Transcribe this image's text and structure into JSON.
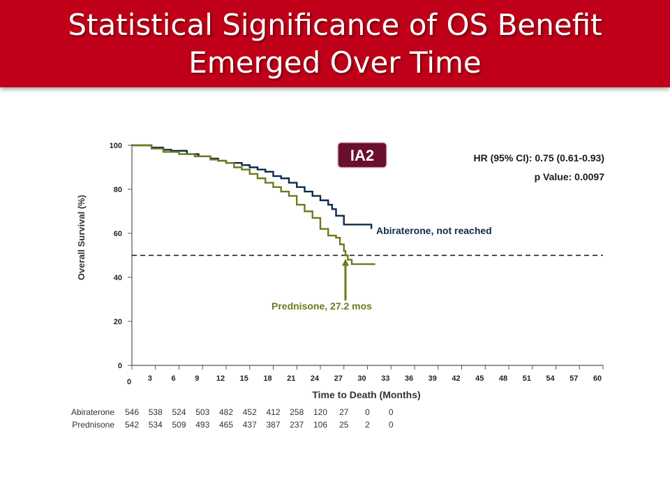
{
  "header": {
    "title_line1": "Statistical Significance of OS Benefit",
    "title_line2": "Emerged Over Time",
    "bg_color": "#c00018"
  },
  "chart_data": {
    "type": "line",
    "title": "",
    "xlabel": "Time to Death (Months)",
    "ylabel": "Overall Survival (%)",
    "xlim": [
      0,
      60
    ],
    "ylim": [
      0,
      100
    ],
    "x_ticks": [
      0,
      3,
      6,
      9,
      12,
      15,
      18,
      21,
      24,
      27,
      30,
      33,
      36,
      39,
      42,
      45,
      48,
      51,
      54,
      57,
      60
    ],
    "y_ticks": [
      0,
      20,
      40,
      60,
      80,
      100
    ],
    "grid": false,
    "badge": {
      "text": "IA2",
      "color": "#6b0f2e"
    },
    "stats": {
      "hr": "HR (95% CI): 0.75 (0.61-0.93)",
      "p": "p Value: 0.0097"
    },
    "median_line_y": 50,
    "series": [
      {
        "name": "Abiraterone",
        "label": "Abiraterone, not reached",
        "color": "#0d2a4a",
        "x": [
          0,
          0.5,
          2.5,
          4,
          5,
          7,
          8.5,
          10,
          11,
          12,
          14,
          15,
          16,
          17,
          18,
          19,
          20,
          21,
          22,
          23,
          24,
          25,
          25.5,
          26,
          27,
          30.5
        ],
        "y": [
          100,
          100,
          99,
          98,
          97.5,
          96,
          95,
          94,
          93,
          92,
          91,
          90,
          89,
          88,
          86,
          85,
          83,
          81,
          79,
          77,
          75,
          73,
          71,
          68,
          64,
          62
        ]
      },
      {
        "name": "Prednisone",
        "label": "Prednisone, 27.2 mos",
        "color": "#6b7a1e",
        "x": [
          0,
          0.5,
          2.5,
          4,
          6,
          8,
          10,
          11,
          12,
          13,
          14,
          15,
          16,
          17,
          18,
          19,
          20,
          21,
          22,
          23,
          24,
          25,
          26,
          26.5,
          27,
          27.2,
          27.5,
          28,
          31
        ],
        "y": [
          100,
          100,
          98.5,
          97,
          96,
          95,
          93.5,
          93,
          92,
          90,
          89,
          87,
          85,
          83,
          81,
          79,
          77,
          73,
          70,
          67,
          62,
          59,
          58,
          55,
          52,
          50,
          48,
          46,
          46
        ]
      }
    ],
    "median_annotation_x": 27.2,
    "risk_table": {
      "times": [
        0,
        3,
        6,
        9,
        12,
        15,
        18,
        21,
        24,
        27,
        30,
        33
      ],
      "rows": [
        {
          "name": "Abiraterone",
          "values": [
            "546",
            "538",
            "524",
            "503",
            "482",
            "452",
            "412",
            "258",
            "120",
            "27",
            "0",
            "0"
          ]
        },
        {
          "name": "Prednisone",
          "values": [
            "542",
            "534",
            "509",
            "493",
            "465",
            "437",
            "387",
            "237",
            "106",
            "25",
            "2",
            "0"
          ]
        }
      ]
    }
  }
}
